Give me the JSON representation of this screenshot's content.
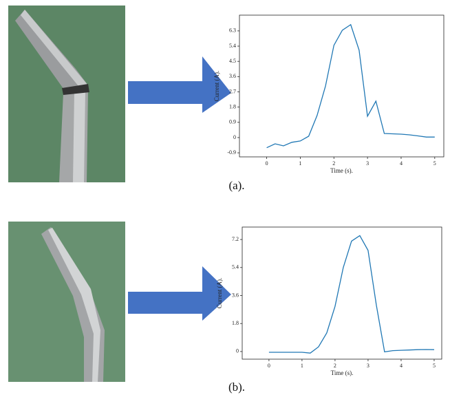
{
  "chart_data": [
    {
      "type": "line",
      "caption": "(a).",
      "xlabel": "Time (s).",
      "ylabel": "Current (A).",
      "x": [
        0,
        0.25,
        0.5,
        0.75,
        1.0,
        1.25,
        1.5,
        1.75,
        2.0,
        2.25,
        2.5,
        2.75,
        3.0,
        3.25,
        3.5,
        4.0,
        4.25,
        4.5,
        4.75,
        5.0
      ],
      "values": [
        -0.6,
        -0.37,
        -0.49,
        -0.28,
        -0.2,
        0.08,
        1.3,
        3.05,
        5.45,
        6.34,
        6.67,
        5.16,
        1.26,
        2.15,
        0.24,
        0.2,
        0.16,
        0.1,
        0.03,
        0.03
      ],
      "color": "#1f77b4",
      "xlim": [
        -0.81,
        5.27
      ],
      "xticks": [
        0,
        1,
        2,
        3,
        4,
        5
      ],
      "ylim": [
        -1.14,
        7.23
      ],
      "yticks": [
        -0.9,
        0,
        0.9,
        1.8,
        2.7,
        3.6,
        4.5,
        5.4,
        6.3
      ]
    },
    {
      "type": "line",
      "caption": "(b).",
      "xlabel": "Time (s).",
      "ylabel": "Current (A).",
      "x": [
        0,
        0.25,
        0.5,
        0.75,
        1.0,
        1.25,
        1.5,
        1.75,
        2.0,
        2.25,
        2.5,
        2.75,
        3.0,
        3.25,
        3.5,
        3.75,
        4.0,
        4.25,
        4.5,
        4.75,
        5.0
      ],
      "values": [
        -0.05,
        -0.05,
        -0.05,
        -0.05,
        -0.05,
        -0.1,
        0.3,
        1.2,
        2.9,
        5.4,
        7.1,
        7.45,
        6.5,
        3.0,
        -0.02,
        0.06,
        0.08,
        0.1,
        0.12,
        0.13,
        0.12
      ],
      "color": "#1f77b4",
      "xlim": [
        -0.81,
        5.23
      ],
      "xticks": [
        0,
        1,
        2,
        3,
        4,
        5
      ],
      "ylim": [
        -0.49,
        8.0
      ],
      "yticks": [
        0,
        1.8,
        3.6,
        5.4,
        7.2
      ]
    }
  ]
}
